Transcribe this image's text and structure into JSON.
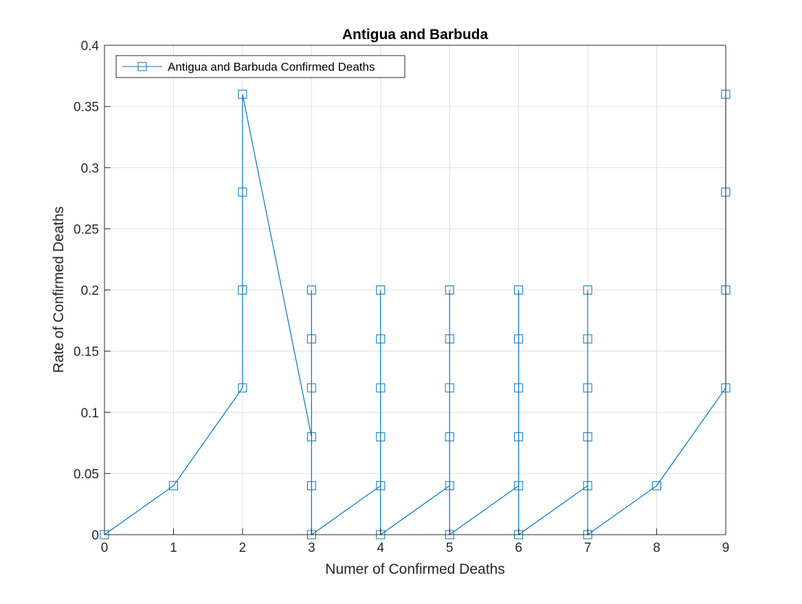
{
  "chart_data": {
    "type": "line",
    "title": "Antigua and Barbuda",
    "xlabel": "Numer of Confirmed Deaths",
    "ylabel": "Rate of Confirmed Deaths",
    "xlim": [
      0,
      9
    ],
    "ylim": [
      0,
      0.4
    ],
    "xticks": [
      "0",
      "1",
      "2",
      "3",
      "4",
      "5",
      "6",
      "7",
      "8",
      "9"
    ],
    "yticks": [
      "0",
      "0.05",
      "0.1",
      "0.15",
      "0.2",
      "0.25",
      "0.3",
      "0.35",
      "0.4"
    ],
    "grid": true,
    "legend_position": "top-left",
    "marker": "square",
    "series": [
      {
        "name": "Antigua and Barbuda Confirmed Deaths",
        "color": "#0072BD",
        "x": [
          0,
          1,
          2,
          2,
          2,
          2,
          3,
          3,
          3,
          3,
          3,
          3,
          4,
          4,
          4,
          4,
          4,
          4,
          5,
          5,
          5,
          5,
          5,
          5,
          6,
          6,
          6,
          6,
          6,
          6,
          7,
          7,
          7,
          7,
          7,
          7,
          8,
          9,
          9,
          9,
          9
        ],
        "y": [
          0,
          0.04,
          0.12,
          0.2,
          0.28,
          0.36,
          0.08,
          0.2,
          0.16,
          0.12,
          0.04,
          0,
          0.04,
          0.2,
          0.16,
          0.12,
          0.08,
          0,
          0.04,
          0.2,
          0.16,
          0.12,
          0.08,
          0,
          0.04,
          0.2,
          0.16,
          0.12,
          0.08,
          0,
          0.04,
          0.2,
          0.16,
          0.12,
          0.08,
          0,
          0.04,
          0.12,
          0.2,
          0.28,
          0.36
        ]
      }
    ]
  }
}
